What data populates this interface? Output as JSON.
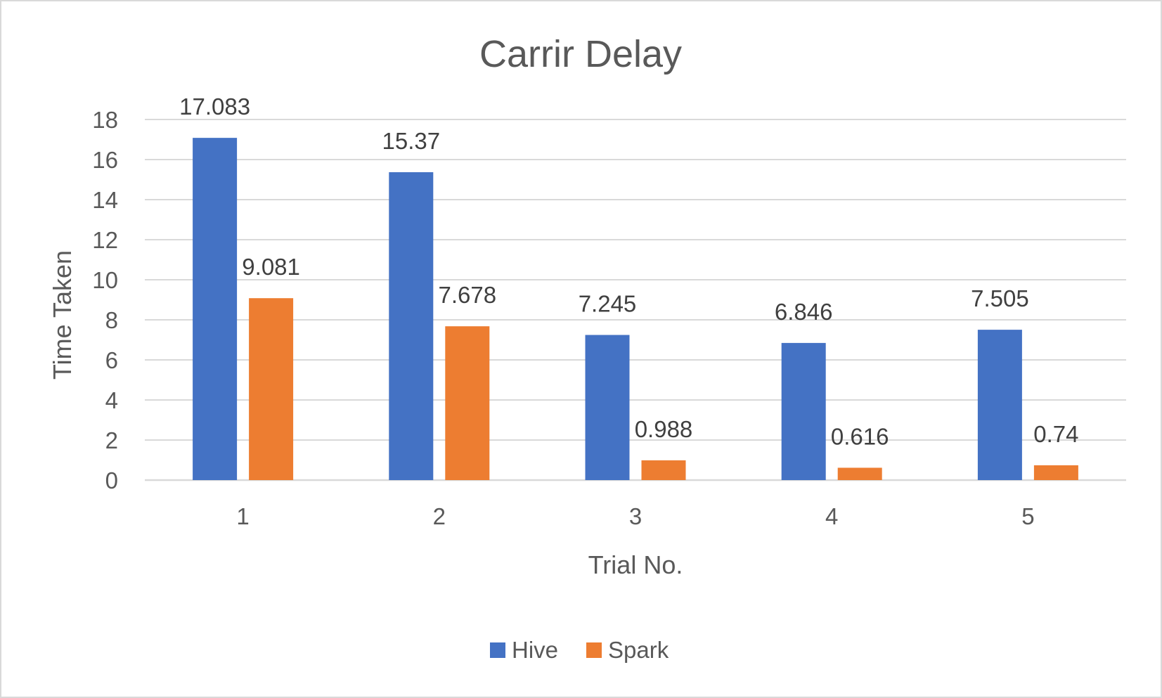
{
  "chart_data": {
    "type": "bar",
    "title": "Carrir Delay",
    "xlabel": "Trial No.",
    "ylabel": "Time Taken",
    "categories": [
      "1",
      "2",
      "3",
      "4",
      "5"
    ],
    "series": [
      {
        "name": "Hive",
        "values": [
          17.083,
          15.37,
          7.245,
          6.846,
          7.505
        ],
        "labels": [
          "17.083",
          "15.37",
          "7.245",
          "6.846",
          "7.505"
        ],
        "color": "#4472c4"
      },
      {
        "name": "Spark",
        "values": [
          9.081,
          7.678,
          0.988,
          0.616,
          0.74
        ],
        "labels": [
          "9.081",
          "7.678",
          "0.988",
          "0.616",
          "0.74"
        ],
        "color": "#ed7d31"
      }
    ],
    "ylim": [
      0,
      18
    ],
    "yticks": [
      0,
      2,
      4,
      6,
      8,
      10,
      12,
      14,
      16,
      18
    ],
    "grid": true,
    "legend": "bottom"
  }
}
